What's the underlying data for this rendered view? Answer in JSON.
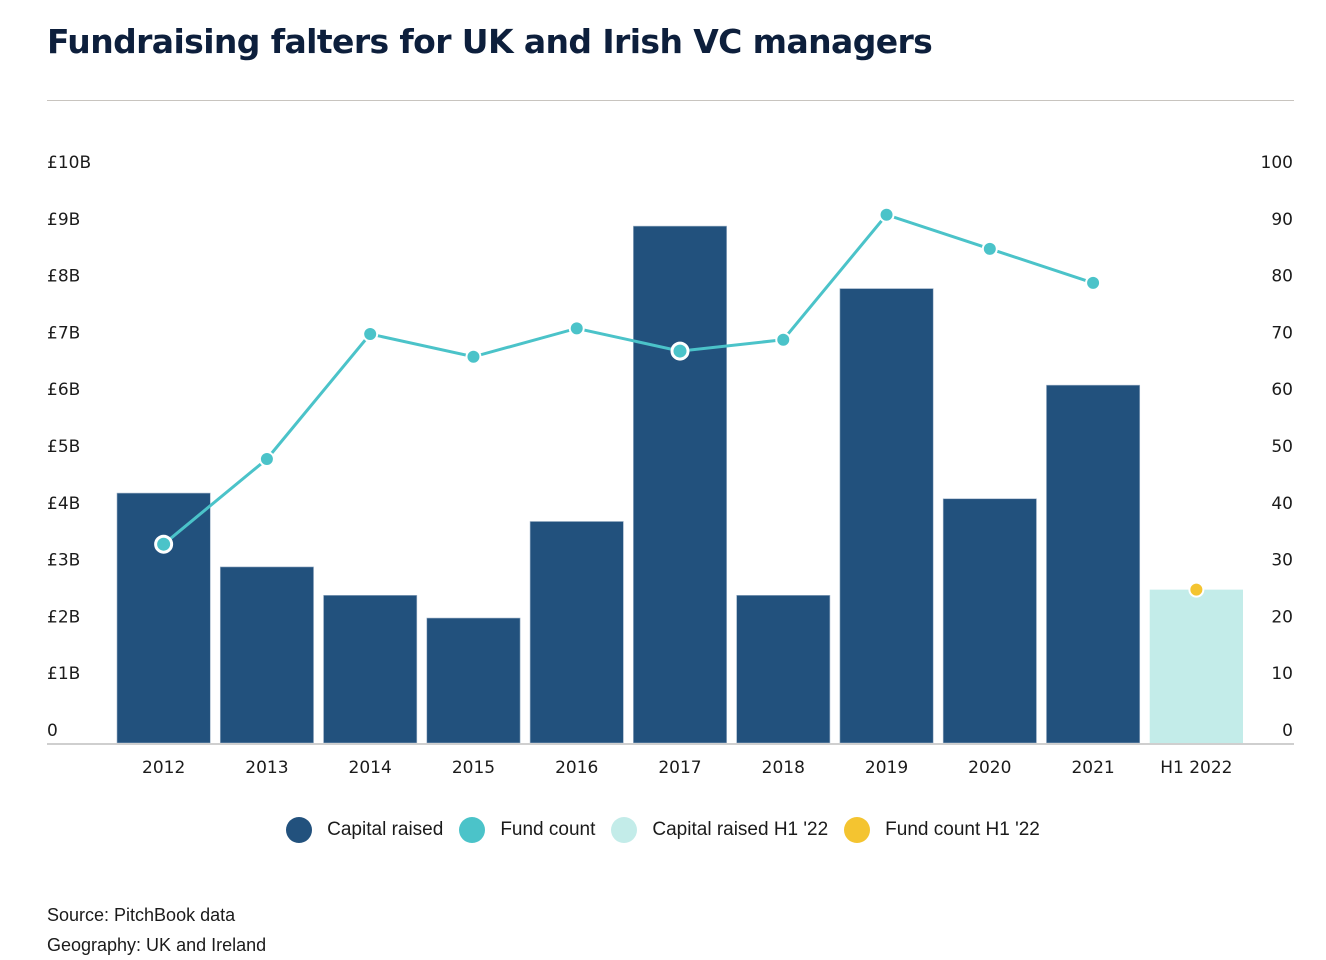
{
  "title": "Fundraising falters for UK and Irish VC managers",
  "colors": {
    "capital": "#22517d",
    "fund_count": "#4bc3c9",
    "capital_h1": "#c3ece9",
    "fund_count_h1": "#f4c430",
    "axis": "#cfcfcf"
  },
  "legend": [
    {
      "label": "Capital raised",
      "color": "#22517d"
    },
    {
      "label": "Fund count",
      "color": "#4bc3c9"
    },
    {
      "label": "Capital raised H1 '22",
      "color": "#c3ece9"
    },
    {
      "label": "Fund count H1 '22",
      "color": "#f4c430"
    }
  ],
  "footer": {
    "source": "Source: PitchBook data",
    "geography": "Geography: UK and Ireland"
  },
  "chart_data": {
    "type": "bar",
    "title": "Fundraising falters for UK and Irish VC managers",
    "categories": [
      "2012",
      "2013",
      "2014",
      "2015",
      "2016",
      "2017",
      "2018",
      "2019",
      "2020",
      "2021",
      "H1 2022"
    ],
    "series": [
      {
        "name": "Capital raised",
        "axis": "left",
        "type": "bar",
        "unit": "£B",
        "values": [
          4.4,
          3.1,
          2.6,
          2.2,
          3.9,
          9.1,
          2.6,
          8.0,
          4.3,
          6.3,
          null
        ]
      },
      {
        "name": "Fund count",
        "axis": "right",
        "type": "line",
        "values": [
          35,
          50,
          72,
          68,
          73,
          69,
          71,
          93,
          87,
          81,
          null
        ]
      },
      {
        "name": "Capital raised H1 '22",
        "axis": "left",
        "type": "bar",
        "unit": "£B",
        "values": [
          null,
          null,
          null,
          null,
          null,
          null,
          null,
          null,
          null,
          null,
          2.7
        ]
      },
      {
        "name": "Fund count H1 '22",
        "axis": "right",
        "type": "point",
        "values": [
          null,
          null,
          null,
          null,
          null,
          null,
          null,
          null,
          null,
          null,
          27
        ]
      }
    ],
    "highlighted_points": [
      "2012",
      "2017"
    ],
    "y_left": {
      "ticks": [
        "0",
        "£1B",
        "£2B",
        "£3B",
        "£4B",
        "£5B",
        "£6B",
        "£7B",
        "£8B",
        "£9B",
        "£10B"
      ],
      "ylim": [
        0,
        10
      ]
    },
    "y_right": {
      "ticks": [
        "0",
        "10",
        "20",
        "30",
        "40",
        "50",
        "60",
        "70",
        "80",
        "90",
        "100"
      ],
      "ylim": [
        0,
        100
      ]
    },
    "xlabel": "",
    "ylabel": "",
    "grid": false,
    "legend_position": "bottom"
  }
}
